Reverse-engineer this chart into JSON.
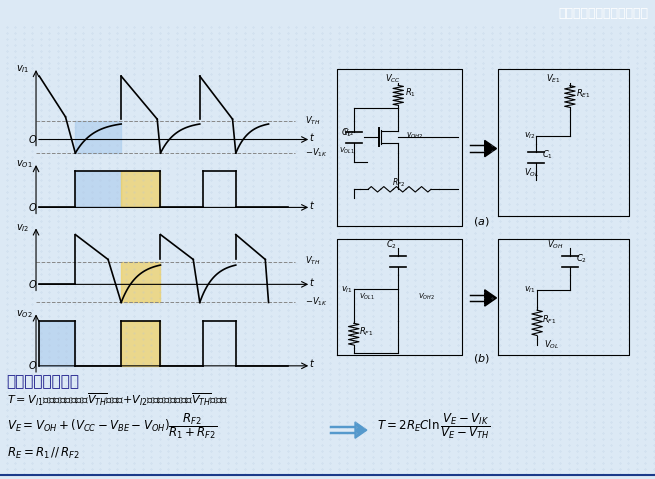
{
  "bg_color": "#dce9f5",
  "title_bar_color": "#1a3a8a",
  "title_text": "《数字电子技术基础》第五",
  "section_title": "三、振荡频率计算",
  "grid_color": "#b0c4de",
  "waveform_color": "#000000",
  "blue_fill": "#aaccee",
  "yellow_fill": "#f0d060"
}
